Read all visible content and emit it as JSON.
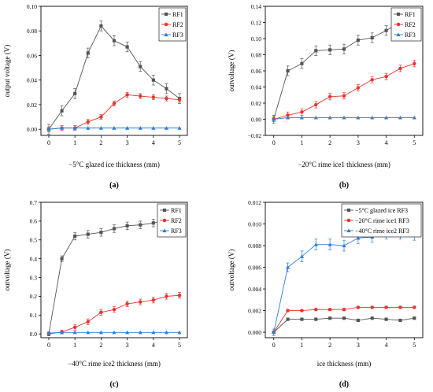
{
  "figure_colors": {
    "RF1": "#555555",
    "RF2": "#e8342f",
    "RF3": "#2b7fd6"
  },
  "chart_data": [
    {
      "type": "line",
      "panel_label": "(a)",
      "xlabel": "−5°C glazed ice thickness (mm)",
      "ylabel": "output voltage (V)",
      "xlim": [
        -0.3,
        5.3
      ],
      "ylim": [
        -0.005,
        0.1
      ],
      "xticks": [
        "0",
        "1",
        "2",
        "3",
        "4",
        "5"
      ],
      "yticks": [
        "0.00",
        "0.02",
        "0.04",
        "0.06",
        "0.08",
        "0.10"
      ],
      "legend": "top-right",
      "x": [
        0,
        0.5,
        1,
        1.5,
        2,
        2.5,
        3,
        3.5,
        4,
        4.5,
        5
      ],
      "series": [
        {
          "name": "RF1",
          "color": "#555555",
          "marker": "square",
          "values": [
            0.0,
            0.015,
            0.029,
            0.062,
            0.084,
            0.072,
            0.067,
            0.051,
            0.04,
            0.033,
            0.025
          ],
          "errors": [
            0.004,
            0.004,
            0.004,
            0.004,
            0.004,
            0.004,
            0.004,
            0.004,
            0.004,
            0.004,
            0.004
          ]
        },
        {
          "name": "RF2",
          "color": "#e8342f",
          "marker": "circle",
          "values": [
            0.0,
            0.001,
            0.001,
            0.006,
            0.01,
            0.021,
            0.028,
            0.027,
            0.026,
            0.025,
            0.024
          ],
          "errors": [
            0.002,
            0.002,
            0.002,
            0.002,
            0.002,
            0.002,
            0.002,
            0.002,
            0.002,
            0.002,
            0.002
          ]
        },
        {
          "name": "RF3",
          "color": "#2b7fd6",
          "marker": "triangle",
          "values": [
            0.0,
            0.001,
            0.001,
            0.001,
            0.001,
            0.001,
            0.001,
            0.001,
            0.001,
            0.001,
            0.001
          ],
          "errors": [
            0.0003,
            0.0003,
            0.0003,
            0.0003,
            0.0003,
            0.0003,
            0.0003,
            0.0003,
            0.0003,
            0.0003,
            0.0003
          ]
        }
      ]
    },
    {
      "type": "line",
      "panel_label": "(b)",
      "xlabel": "−20°C rime ice1 thickness (mm)",
      "ylabel": "outvoltage (V)",
      "xlim": [
        -0.3,
        5.3
      ],
      "ylim": [
        -0.02,
        0.14
      ],
      "xticks": [
        "0",
        "1",
        "2",
        "3",
        "4",
        "5"
      ],
      "yticks": [
        "−0.02",
        "0.00",
        "0.02",
        "0.04",
        "0.06",
        "0.08",
        "0.10",
        "0.12",
        "0.14"
      ],
      "legend": "top-left",
      "x": [
        0,
        0.5,
        1,
        1.5,
        2,
        2.5,
        3,
        3.5,
        4,
        4.5,
        5
      ],
      "series": [
        {
          "name": "RF1",
          "color": "#555555",
          "marker": "square",
          "values": [
            0.0,
            0.06,
            0.069,
            0.085,
            0.086,
            0.087,
            0.098,
            0.101,
            0.11,
            0.12,
            0.127
          ],
          "errors": [
            0.005,
            0.006,
            0.006,
            0.006,
            0.006,
            0.006,
            0.006,
            0.006,
            0.006,
            0.006,
            0.006
          ]
        },
        {
          "name": "RF2",
          "color": "#e8342f",
          "marker": "circle",
          "values": [
            0.0,
            0.005,
            0.009,
            0.018,
            0.028,
            0.029,
            0.039,
            0.049,
            0.053,
            0.063,
            0.069
          ],
          "errors": [
            0.003,
            0.004,
            0.004,
            0.004,
            0.004,
            0.004,
            0.004,
            0.004,
            0.004,
            0.004,
            0.004
          ]
        },
        {
          "name": "RF3",
          "color": "#2b7fd6",
          "marker": "triangle",
          "values": [
            0.0,
            0.002,
            0.002,
            0.002,
            0.002,
            0.002,
            0.002,
            0.002,
            0.002,
            0.002,
            0.002
          ],
          "errors": [
            0.0005,
            0.0005,
            0.0005,
            0.0005,
            0.0005,
            0.0005,
            0.0005,
            0.0005,
            0.0005,
            0.0005,
            0.0005
          ]
        }
      ]
    },
    {
      "type": "line",
      "panel_label": "(c)",
      "xlabel": "−40°C rime ice2 thickness (mm)",
      "ylabel": "outvoltage (V)",
      "xlim": [
        -0.3,
        5.3
      ],
      "ylim": [
        -0.02,
        0.7
      ],
      "xticks": [
        "0",
        "1",
        "2",
        "3",
        "4",
        "5"
      ],
      "yticks": [
        "0.0",
        "0.1",
        "0.2",
        "0.3",
        "0.4",
        "0.5",
        "0.6",
        "0.7"
      ],
      "legend": "top-right",
      "x": [
        0,
        0.5,
        1,
        1.5,
        2,
        2.5,
        3,
        3.5,
        4,
        4.5,
        5
      ],
      "series": [
        {
          "name": "RF1",
          "color": "#555555",
          "marker": "square",
          "values": [
            0.0,
            0.4,
            0.52,
            0.53,
            0.54,
            0.56,
            0.575,
            0.58,
            0.59,
            0.605,
            0.61
          ],
          "errors": [
            0.01,
            0.015,
            0.02,
            0.02,
            0.02,
            0.02,
            0.02,
            0.02,
            0.02,
            0.02,
            0.02
          ]
        },
        {
          "name": "RF2",
          "color": "#e8342f",
          "marker": "circle",
          "values": [
            0.0,
            0.01,
            0.035,
            0.065,
            0.115,
            0.13,
            0.16,
            0.17,
            0.18,
            0.2,
            0.205
          ],
          "errors": [
            0.005,
            0.01,
            0.015,
            0.015,
            0.015,
            0.015,
            0.015,
            0.015,
            0.015,
            0.015,
            0.015
          ]
        },
        {
          "name": "RF3",
          "color": "#2b7fd6",
          "marker": "triangle",
          "values": [
            0.005,
            0.008,
            0.008,
            0.008,
            0.008,
            0.008,
            0.008,
            0.008,
            0.008,
            0.008,
            0.008
          ],
          "errors": [
            0.002,
            0.002,
            0.002,
            0.002,
            0.002,
            0.002,
            0.002,
            0.002,
            0.002,
            0.002,
            0.002
          ]
        }
      ]
    },
    {
      "type": "line",
      "panel_label": "(d)",
      "xlabel": "ice thickness (mm)",
      "ylabel": "outvoltage (V)",
      "xlim": [
        -0.3,
        5.3
      ],
      "ylim": [
        -0.0005,
        0.012
      ],
      "xticks": [
        "0",
        "1",
        "2",
        "3",
        "4",
        "5"
      ],
      "yticks": [
        "0.000",
        "0.002",
        "0.004",
        "0.006",
        "0.008",
        "0.010",
        "0.012"
      ],
      "legend": "top-right",
      "x": [
        0,
        0.5,
        1,
        1.5,
        2,
        2.5,
        3,
        3.5,
        4,
        4.5,
        5
      ],
      "series": [
        {
          "name": "−5°C glazed ice RF3",
          "color": "#555555",
          "marker": "square",
          "values": [
            0.0,
            0.0012,
            0.0012,
            0.0012,
            0.0013,
            0.0013,
            0.0011,
            0.0013,
            0.0012,
            0.0011,
            0.0013
          ],
          "errors": [
            5e-05,
            5e-05,
            5e-05,
            5e-05,
            5e-05,
            5e-05,
            5e-05,
            5e-05,
            5e-05,
            5e-05,
            5e-05
          ]
        },
        {
          "name": "−20°C rime ice1 RF3",
          "color": "#e8342f",
          "marker": "circle",
          "values": [
            0.0,
            0.002,
            0.002,
            0.0021,
            0.0021,
            0.0021,
            0.0023,
            0.0023,
            0.0023,
            0.0023,
            0.0023
          ],
          "errors": [
            0.0001,
            0.0001,
            0.0001,
            0.0001,
            0.0001,
            0.0001,
            0.0001,
            0.0001,
            0.0001,
            0.0001,
            0.0001
          ]
        },
        {
          "name": "−40°C rime ice2 RF3",
          "color": "#2b7fd6",
          "marker": "triangle",
          "values": [
            0.0,
            0.006,
            0.007,
            0.0081,
            0.0081,
            0.008,
            0.0087,
            0.0088,
            0.0091,
            0.0091,
            0.009
          ],
          "errors": [
            0.0003,
            0.0004,
            0.0005,
            0.0005,
            0.0005,
            0.0005,
            0.0005,
            0.0005,
            0.0005,
            0.0005,
            0.0005
          ]
        }
      ]
    }
  ]
}
